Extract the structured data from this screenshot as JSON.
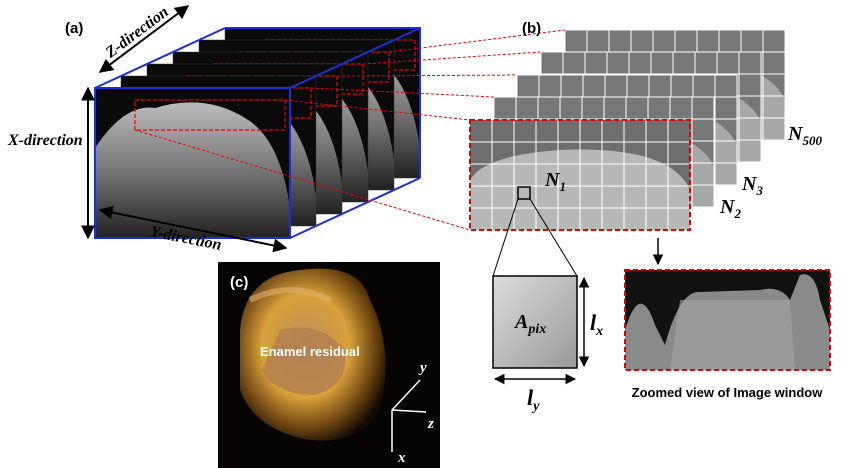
{
  "panel_a": {
    "label": "(a)",
    "z_axis": "Z-direction",
    "x_axis": "X-direction",
    "y_axis": "Y-direction"
  },
  "panel_b": {
    "label": "(b)",
    "frames": [
      {
        "base": "N",
        "sub": "1"
      },
      {
        "base": "N",
        "sub": "2"
      },
      {
        "base": "N",
        "sub": "3"
      },
      {
        "base": "N",
        "sub": "500"
      }
    ],
    "pixel": {
      "base": "A",
      "sub": "pix"
    },
    "lx": {
      "base": "l",
      "sub": "x"
    },
    "ly": {
      "base": "l",
      "sub": "y"
    },
    "zoom_caption": "Zoomed view of Image window"
  },
  "panel_c": {
    "label": "(c)",
    "annotation": "Enamel residual",
    "axes": [
      "y",
      "z",
      "x"
    ]
  }
}
